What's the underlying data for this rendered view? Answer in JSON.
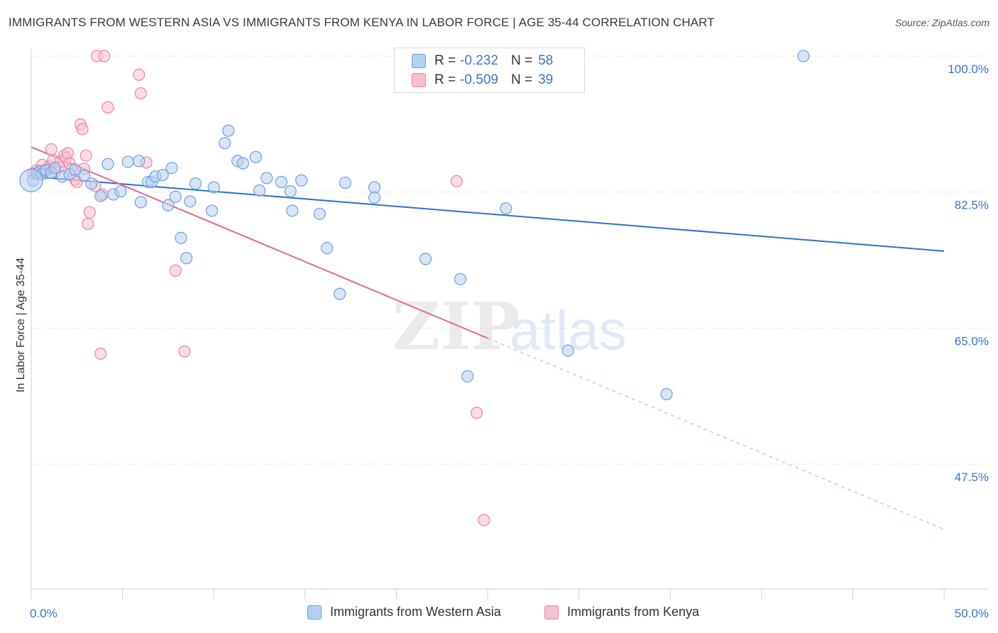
{
  "header": {
    "title": "IMMIGRANTS FROM WESTERN ASIA VS IMMIGRANTS FROM KENYA IN LABOR FORCE | AGE 35-44 CORRELATION CHART",
    "source": "Source: ZipAtlas.com"
  },
  "legend": {
    "rows": [
      {
        "r_label": "R =",
        "r_value": "-0.232",
        "n_label": "N =",
        "n_value": "58"
      },
      {
        "r_label": "R =",
        "r_value": "-0.509",
        "n_label": "N =",
        "n_value": "39"
      }
    ]
  },
  "bottom_legend": {
    "series1": "Immigrants from Western Asia",
    "series2": "Immigrants from Kenya"
  },
  "watermark": {
    "zip": "ZIP",
    "atlas": "atlas"
  },
  "colors": {
    "blue_fill": "#b6d0f0",
    "blue_stroke": "#6f9fdd",
    "blue_line": "#2f72cf",
    "pink_fill": "#f6c0d1",
    "pink_stroke": "#e985a8",
    "pink_line": "#e06b94",
    "tick_color": "#3d74c7"
  },
  "chart_data": {
    "type": "scatter",
    "title": "IMMIGRANTS FROM WESTERN ASIA VS IMMIGRANTS FROM KENYA IN LABOR FORCE | AGE 35-44 CORRELATION CHART",
    "xlabel": "",
    "ylabel": "In Labor Force | Age 35-44",
    "xlim": [
      0,
      50
    ],
    "ylim": [
      32.5,
      102
    ],
    "x_tick_labels": [
      "0.0%",
      "50.0%"
    ],
    "y_ticks": [
      47.5,
      65.0,
      82.5,
      100.0
    ],
    "y_tick_labels": [
      "47.5%",
      "65.0%",
      "82.5%",
      "100.0%"
    ],
    "grid": true,
    "legend_position": "top-center",
    "series": [
      {
        "name": "Immigrants from Western Asia",
        "color": "#6f9fdd",
        "R": -0.232,
        "N": 58,
        "trend": {
          "x": [
            0,
            50
          ],
          "y": [
            84.5,
            74.9
          ]
        },
        "points": [
          [
            0.1,
            84.0
          ],
          [
            0.3,
            84.9
          ],
          [
            0.5,
            85.2
          ],
          [
            0.6,
            84.8
          ],
          [
            0.8,
            85.3
          ],
          [
            1.1,
            85.0
          ],
          [
            1.3,
            85.6
          ],
          [
            1.7,
            84.5
          ],
          [
            2.1,
            84.8
          ],
          [
            2.4,
            85.4
          ],
          [
            2.9,
            84.6
          ],
          [
            3.3,
            83.6
          ],
          [
            3.8,
            82.0
          ],
          [
            4.2,
            86.1
          ],
          [
            4.5,
            82.2
          ],
          [
            4.9,
            82.6
          ],
          [
            5.3,
            86.4
          ],
          [
            5.9,
            86.5
          ],
          [
            6.0,
            81.2
          ],
          [
            6.4,
            83.8
          ],
          [
            6.6,
            83.8
          ],
          [
            6.8,
            84.5
          ],
          [
            7.2,
            84.7
          ],
          [
            7.5,
            80.8
          ],
          [
            7.7,
            85.6
          ],
          [
            7.9,
            81.9
          ],
          [
            8.2,
            76.6
          ],
          [
            8.5,
            74.0
          ],
          [
            8.7,
            81.3
          ],
          [
            9.0,
            83.6
          ],
          [
            9.9,
            80.1
          ],
          [
            10.0,
            83.1
          ],
          [
            10.6,
            88.8
          ],
          [
            10.8,
            90.4
          ],
          [
            11.3,
            86.5
          ],
          [
            11.6,
            86.2
          ],
          [
            12.3,
            87.0
          ],
          [
            12.5,
            82.7
          ],
          [
            12.9,
            84.3
          ],
          [
            13.7,
            83.8
          ],
          [
            14.2,
            82.6
          ],
          [
            14.3,
            80.1
          ],
          [
            14.8,
            84.0
          ],
          [
            15.8,
            79.7
          ],
          [
            16.2,
            75.3
          ],
          [
            16.9,
            69.4
          ],
          [
            17.2,
            83.7
          ],
          [
            18.8,
            83.1
          ],
          [
            18.8,
            81.8
          ],
          [
            20.5,
            100.0
          ],
          [
            21.6,
            73.9
          ],
          [
            23.5,
            71.3
          ],
          [
            23.9,
            58.8
          ],
          [
            26.0,
            80.4
          ],
          [
            29.4,
            62.1
          ],
          [
            34.8,
            56.5
          ],
          [
            42.3,
            100.0
          ],
          [
            0.0,
            84.0
          ]
        ]
      },
      {
        "name": "Immigrants from Kenya",
        "color": "#e985a8",
        "R": -0.509,
        "N": 39,
        "trend": {
          "x": [
            0,
            25
          ],
          "y": [
            88.3,
            63.7
          ]
        },
        "trend_dashed": {
          "x": [
            25,
            50
          ],
          "y": [
            63.7,
            39.1
          ]
        },
        "points": [
          [
            0.1,
            84.9
          ],
          [
            0.3,
            85.3
          ],
          [
            0.4,
            85.0
          ],
          [
            0.6,
            86.0
          ],
          [
            0.7,
            85.2
          ],
          [
            0.9,
            85.5
          ],
          [
            1.0,
            85.8
          ],
          [
            1.1,
            88.0
          ],
          [
            1.2,
            86.6
          ],
          [
            1.3,
            85.1
          ],
          [
            1.5,
            85.7
          ],
          [
            1.6,
            86.4
          ],
          [
            1.8,
            87.2
          ],
          [
            1.9,
            86.9
          ],
          [
            2.0,
            87.5
          ],
          [
            2.1,
            86.2
          ],
          [
            2.2,
            85.4
          ],
          [
            2.4,
            84.1
          ],
          [
            2.5,
            83.8
          ],
          [
            2.7,
            91.2
          ],
          [
            2.8,
            90.6
          ],
          [
            2.9,
            85.5
          ],
          [
            3.0,
            87.2
          ],
          [
            3.1,
            78.4
          ],
          [
            3.2,
            79.9
          ],
          [
            3.5,
            83.3
          ],
          [
            3.6,
            100.0
          ],
          [
            3.8,
            61.7
          ],
          [
            3.9,
            82.2
          ],
          [
            4.0,
            100.0
          ],
          [
            4.2,
            93.4
          ],
          [
            5.9,
            97.6
          ],
          [
            6.0,
            95.2
          ],
          [
            6.3,
            86.3
          ],
          [
            7.9,
            72.4
          ],
          [
            8.4,
            62.0
          ],
          [
            24.4,
            54.1
          ],
          [
            24.8,
            40.3
          ],
          [
            23.3,
            83.9
          ]
        ]
      }
    ]
  }
}
